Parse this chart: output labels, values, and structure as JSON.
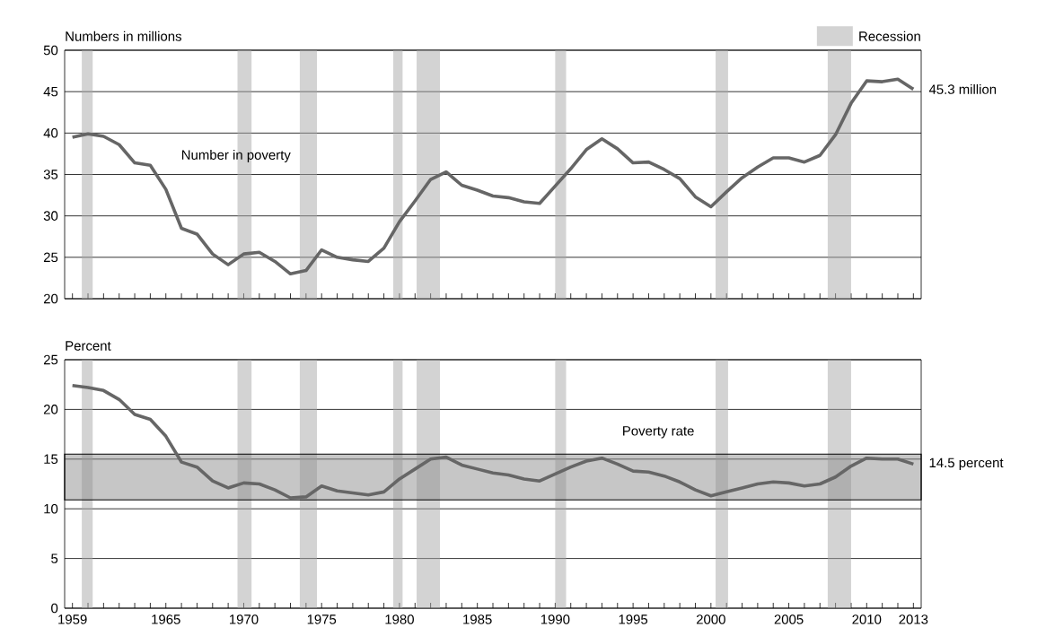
{
  "chart_data": [
    {
      "type": "line",
      "ylabel": "Numbers in millions",
      "legend": "top right",
      "tick_labels": "y",
      "grid": "y",
      "x": [
        1959,
        1960,
        1961,
        1962,
        1963,
        1964,
        1965,
        1966,
        1967,
        1968,
        1969,
        1970,
        1971,
        1972,
        1973,
        1974,
        1975,
        1976,
        1977,
        1978,
        1979,
        1980,
        1981,
        1982,
        1983,
        1984,
        1985,
        1986,
        1987,
        1988,
        1989,
        1990,
        1991,
        1992,
        1993,
        1994,
        1995,
        1996,
        1997,
        1998,
        1999,
        2000,
        2001,
        2002,
        2003,
        2004,
        2005,
        2006,
        2007,
        2008,
        2009,
        2010,
        2011,
        2012,
        2013
      ],
      "series": [
        {
          "name": "Number in poverty",
          "color": "#666666",
          "values": [
            39.5,
            39.9,
            39.6,
            38.6,
            36.4,
            36.1,
            33.2,
            28.5,
            27.8,
            25.4,
            24.1,
            25.4,
            25.6,
            24.5,
            23.0,
            23.4,
            25.9,
            25.0,
            24.7,
            24.5,
            26.1,
            29.3,
            31.8,
            34.4,
            35.3,
            33.7,
            33.1,
            32.4,
            32.2,
            31.7,
            31.5,
            33.6,
            35.7,
            38.0,
            39.3,
            38.1,
            36.4,
            36.5,
            35.6,
            34.5,
            32.3,
            31.1,
            32.9,
            34.6,
            35.9,
            37.0,
            37.0,
            36.5,
            37.3,
            39.8,
            43.6,
            46.3,
            46.2,
            46.5,
            45.3
          ]
        }
      ],
      "xlim": [
        1958.5,
        2013.5
      ],
      "xticks": [
        1959,
        {
          "value": 1960,
          "label": null
        },
        {
          "value": 1961,
          "label": null
        },
        {
          "value": 1962,
          "label": null
        },
        {
          "value": 1963,
          "label": null
        },
        {
          "value": 1964,
          "label": null
        },
        1965,
        {
          "value": 1966,
          "label": null
        },
        {
          "value": 1967,
          "label": null
        },
        {
          "value": 1968,
          "label": null
        },
        {
          "value": 1969,
          "label": null
        },
        1970,
        {
          "value": 1971,
          "label": null
        },
        {
          "value": 1972,
          "label": null
        },
        {
          "value": 1973,
          "label": null
        },
        {
          "value": 1974,
          "label": null
        },
        1975,
        {
          "value": 1976,
          "label": null
        },
        {
          "value": 1977,
          "label": null
        },
        {
          "value": 1978,
          "label": null
        },
        {
          "value": 1979,
          "label": null
        },
        1980,
        {
          "value": 1981,
          "label": null
        },
        {
          "value": 1982,
          "label": null
        },
        {
          "value": 1983,
          "label": null
        },
        {
          "value": 1984,
          "label": null
        },
        1985,
        {
          "value": 1986,
          "label": null
        },
        {
          "value": 1987,
          "label": null
        },
        {
          "value": 1988,
          "label": null
        },
        {
          "value": 1989,
          "label": null
        },
        1990,
        {
          "value": 1991,
          "label": null
        },
        {
          "value": 1992,
          "label": null
        },
        {
          "value": 1993,
          "label": null
        },
        {
          "value": 1994,
          "label": null
        },
        1995,
        {
          "value": 1996,
          "label": null
        },
        {
          "value": 1997,
          "label": null
        },
        {
          "value": 1998,
          "label": null
        },
        {
          "value": 1999,
          "label": null
        },
        2000,
        {
          "value": 2001,
          "label": null
        },
        {
          "value": 2002,
          "label": null
        },
        {
          "value": 2003,
          "label": null
        },
        {
          "value": 2004,
          "label": null
        },
        2005,
        {
          "value": 2006,
          "label": null
        },
        {
          "value": 2007,
          "label": null
        },
        {
          "value": 2008,
          "label": null
        },
        {
          "value": 2009,
          "label": null
        },
        2010,
        {
          "value": 2011,
          "label": null
        },
        {
          "value": 2012,
          "label": null
        },
        2013
      ],
      "ylim": [
        20,
        50
      ],
      "yticks": [
        20,
        25,
        30,
        35,
        40,
        45,
        50
      ],
      "bands": [
        {
          "axis": "x",
          "from": 1959.6,
          "to": 1960.3,
          "label": "Recession",
          "color": "#d3d3d3"
        },
        {
          "axis": "x",
          "from": 1969.6,
          "to": 1970.5,
          "color": "#d3d3d3"
        },
        {
          "axis": "x",
          "from": 1973.6,
          "to": 1974.7,
          "color": "#d3d3d3"
        },
        {
          "axis": "x",
          "from": 1979.6,
          "to": 1980.2,
          "color": "#d3d3d3"
        },
        {
          "axis": "x",
          "from": 1981.1,
          "to": 1982.6,
          "color": "#d3d3d3"
        },
        {
          "axis": "x",
          "from": 1990.0,
          "to": 1990.7,
          "color": "#d3d3d3"
        },
        {
          "axis": "x",
          "from": 2000.3,
          "to": 2001.1,
          "color": "#d3d3d3"
        },
        {
          "axis": "x",
          "from": 2007.5,
          "to": 2009.0,
          "color": "#d3d3d3"
        }
      ],
      "annotations": [
        {
          "text": "45.3 million",
          "x": 2013,
          "y": 45.3
        }
      ]
    },
    {
      "type": "line",
      "ylabel": "Percent",
      "grid": "y",
      "x": [
        1959,
        1960,
        1961,
        1962,
        1963,
        1964,
        1965,
        1966,
        1967,
        1968,
        1969,
        1970,
        1971,
        1972,
        1973,
        1974,
        1975,
        1976,
        1977,
        1978,
        1979,
        1980,
        1981,
        1982,
        1983,
        1984,
        1985,
        1986,
        1987,
        1988,
        1989,
        1990,
        1991,
        1992,
        1993,
        1994,
        1995,
        1996,
        1997,
        1998,
        1999,
        2000,
        2001,
        2002,
        2003,
        2004,
        2005,
        2006,
        2007,
        2008,
        2009,
        2010,
        2011,
        2012,
        2013
      ],
      "series": [
        {
          "name": "Poverty rate",
          "color": "#666666",
          "values": [
            22.4,
            22.2,
            21.9,
            21.0,
            19.5,
            19.0,
            17.3,
            14.7,
            14.2,
            12.8,
            12.1,
            12.6,
            12.5,
            11.9,
            11.1,
            11.2,
            12.3,
            11.8,
            11.6,
            11.4,
            11.7,
            13.0,
            14.0,
            15.0,
            15.2,
            14.4,
            14.0,
            13.6,
            13.4,
            13.0,
            12.8,
            13.5,
            14.2,
            14.8,
            15.1,
            14.5,
            13.8,
            13.7,
            13.3,
            12.7,
            11.9,
            11.3,
            11.7,
            12.1,
            12.5,
            12.7,
            12.6,
            12.3,
            12.5,
            13.2,
            14.3,
            15.1,
            15.0,
            15.0,
            14.5
          ]
        }
      ],
      "xlim": [
        1958.5,
        2013.5
      ],
      "xticks": [
        1959,
        {
          "value": 1960,
          "label": null
        },
        {
          "value": 1961,
          "label": null
        },
        {
          "value": 1962,
          "label": null
        },
        {
          "value": 1963,
          "label": null
        },
        {
          "value": 1964,
          "label": null
        },
        1965,
        {
          "value": 1966,
          "label": null
        },
        {
          "value": 1967,
          "label": null
        },
        {
          "value": 1968,
          "label": null
        },
        {
          "value": 1969,
          "label": null
        },
        1970,
        {
          "value": 1971,
          "label": null
        },
        {
          "value": 1972,
          "label": null
        },
        {
          "value": 1973,
          "label": null
        },
        {
          "value": 1974,
          "label": null
        },
        1975,
        {
          "value": 1976,
          "label": null
        },
        {
          "value": 1977,
          "label": null
        },
        {
          "value": 1978,
          "label": null
        },
        {
          "value": 1979,
          "label": null
        },
        1980,
        {
          "value": 1981,
          "label": null
        },
        {
          "value": 1982,
          "label": null
        },
        {
          "value": 1983,
          "label": null
        },
        {
          "value": 1984,
          "label": null
        },
        1985,
        {
          "value": 1986,
          "label": null
        },
        {
          "value": 1987,
          "label": null
        },
        {
          "value": 1988,
          "label": null
        },
        {
          "value": 1989,
          "label": null
        },
        1990,
        {
          "value": 1991,
          "label": null
        },
        {
          "value": 1992,
          "label": null
        },
        {
          "value": 1993,
          "label": null
        },
        {
          "value": 1994,
          "label": null
        },
        1995,
        {
          "value": 1996,
          "label": null
        },
        {
          "value": 1997,
          "label": null
        },
        {
          "value": 1998,
          "label": null
        },
        {
          "value": 1999,
          "label": null
        },
        2000,
        {
          "value": 2001,
          "label": null
        },
        {
          "value": 2002,
          "label": null
        },
        {
          "value": 2003,
          "label": null
        },
        {
          "value": 2004,
          "label": null
        },
        2005,
        {
          "value": 2006,
          "label": null
        },
        {
          "value": 2007,
          "label": null
        },
        {
          "value": 2008,
          "label": null
        },
        {
          "value": 2009,
          "label": null
        },
        2010,
        {
          "value": 2011,
          "label": null
        },
        {
          "value": 2012,
          "label": null
        },
        2013
      ],
      "ylim": [
        0,
        25
      ],
      "yticks": [
        0,
        5,
        10,
        15,
        20,
        25
      ],
      "bands": [
        {
          "axis": "x",
          "from": 1959.6,
          "to": 1960.3,
          "color": "#d3d3d3"
        },
        {
          "axis": "x",
          "from": 1969.6,
          "to": 1970.5,
          "color": "#d3d3d3"
        },
        {
          "axis": "x",
          "from": 1973.6,
          "to": 1974.7,
          "color": "#d3d3d3"
        },
        {
          "axis": "x",
          "from": 1979.6,
          "to": 1980.2,
          "color": "#d3d3d3"
        },
        {
          "axis": "x",
          "from": 1981.1,
          "to": 1982.6,
          "color": "#d3d3d3"
        },
        {
          "axis": "x",
          "from": 1990.0,
          "to": 1990.7,
          "color": "#d3d3d3"
        },
        {
          "axis": "x",
          "from": 2000.3,
          "to": 2001.1,
          "color": "#d3d3d3"
        },
        {
          "axis": "x",
          "from": 2007.5,
          "to": 2009.0,
          "color": "#d3d3d3"
        },
        {
          "axis": "y",
          "from": 10.9,
          "to": 15.5,
          "color": "#c6c6c6"
        }
      ],
      "annotations": [
        {
          "text": "14.5 percent",
          "x": 2013,
          "y": 14.5
        }
      ]
    }
  ]
}
